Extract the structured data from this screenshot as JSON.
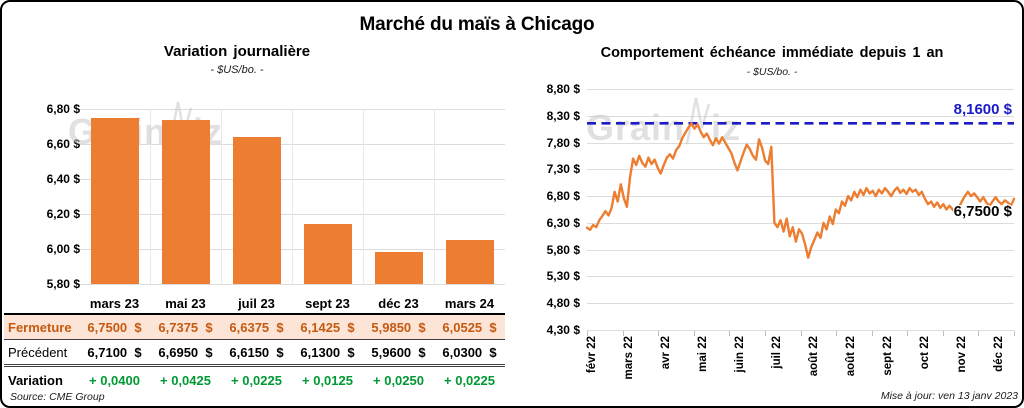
{
  "page": {
    "title": "Marché du maïs à Chicago",
    "watermark_prefix": "Grain",
    "watermark_suffix": "iz",
    "source": "Source: CME Group",
    "updated": "Mise à jour: ven 13 janv 2023"
  },
  "colors": {
    "series_orange": "#ED7D31",
    "close_text": "#C55A11",
    "close_row_bg": "#FCE4D6",
    "variation_green": "#009933",
    "reference_blue": "#1B1BC8",
    "gridline": "#DCDCDC"
  },
  "chart_data": [
    {
      "type": "bar",
      "title": "Variation journalière",
      "subtitle": "- $US/bo. -",
      "categories": [
        "mars 23",
        "mai 23",
        "juil 23",
        "sept 23",
        "déc 23",
        "mars 24"
      ],
      "values": [
        6.75,
        6.7375,
        6.6375,
        6.1425,
        5.985,
        6.0525
      ],
      "ylim": [
        5.8,
        6.8
      ],
      "ytick_step": 0.2,
      "yticks": [
        "6,80 $",
        "6,60 $",
        "6,40 $",
        "6,20 $",
        "6,00 $",
        "5,80 $"
      ],
      "bar_color": "#ED7D31",
      "grid": true,
      "legend": "none"
    },
    {
      "type": "line",
      "title": "Comportement échéance immédiate depuis 1 an",
      "subtitle": "- $US/bo. -",
      "x_labels": [
        "févr 22",
        "mars 22",
        "avr 22",
        "mai 22",
        "juin 22",
        "juil 22",
        "août 22",
        "août 22",
        "sept 22",
        "oct 22",
        "nov 22",
        "déc 22"
      ],
      "ylim": [
        4.3,
        8.8
      ],
      "ytick_step": 0.5,
      "yticks": [
        "8,80 $",
        "8,30 $",
        "7,80 $",
        "7,30 $",
        "6,80 $",
        "6,30 $",
        "5,80 $",
        "5,30 $",
        "4,80 $",
        "4,30 $"
      ],
      "reference_line": {
        "value": 8.16,
        "label": "8,1600 $"
      },
      "last_point": {
        "value": 6.75,
        "label": "6,7500 $"
      },
      "grid": true,
      "legend": "none",
      "series": [
        {
          "color": "#ED7D31",
          "values": [
            6.21,
            6.17,
            6.26,
            6.22,
            6.35,
            6.43,
            6.52,
            6.44,
            6.58,
            6.88,
            6.7,
            7.02,
            6.76,
            6.6,
            7.15,
            7.5,
            7.38,
            7.55,
            7.42,
            7.35,
            7.52,
            7.4,
            7.48,
            7.33,
            7.22,
            7.38,
            7.52,
            7.58,
            7.5,
            7.66,
            7.73,
            7.88,
            7.98,
            8.08,
            8.16,
            8.06,
            8.14,
            8.0,
            7.9,
            7.97,
            7.85,
            7.75,
            7.88,
            7.78,
            7.9,
            7.8,
            7.7,
            7.6,
            7.42,
            7.28,
            7.45,
            7.62,
            7.76,
            7.68,
            7.55,
            7.48,
            7.86,
            7.7,
            7.46,
            7.4,
            7.72,
            6.3,
            6.22,
            6.35,
            6.14,
            6.38,
            6.05,
            6.22,
            5.95,
            6.18,
            6.1,
            5.9,
            5.65,
            5.85,
            5.98,
            6.12,
            6.02,
            6.3,
            6.18,
            6.42,
            6.28,
            6.55,
            6.48,
            6.7,
            6.62,
            6.8,
            6.72,
            6.88,
            6.78,
            6.92,
            6.82,
            6.95,
            6.85,
            6.9,
            6.8,
            6.92,
            6.85,
            6.95,
            6.88,
            6.8,
            6.9,
            6.96,
            6.86,
            6.92,
            6.84,
            6.95,
            6.88,
            6.92,
            6.82,
            6.88,
            6.75,
            6.65,
            6.7,
            6.6,
            6.68,
            6.58,
            6.65,
            6.55,
            6.62,
            6.55,
            6.48,
            6.58,
            6.7,
            6.8,
            6.88,
            6.8,
            6.85,
            6.78,
            6.7,
            6.78,
            6.68,
            6.62,
            6.7,
            6.78,
            6.7,
            6.65,
            6.72,
            6.68,
            6.62,
            6.75
          ]
        }
      ]
    }
  ],
  "table": {
    "months": [
      "mars 23",
      "mai 23",
      "juil 23",
      "sept 23",
      "déc 23",
      "mars 24"
    ],
    "rows": [
      {
        "id": "fermeture",
        "label": "Fermeture",
        "values": [
          "6,7500  $",
          "6,7375  $",
          "6,6375  $",
          "6,1425  $",
          "5,9850  $",
          "6,0525  $"
        ]
      },
      {
        "id": "precedent",
        "label": "Précédent",
        "values": [
          "6,7100  $",
          "6,6950  $",
          "6,6150  $",
          "6,1300  $",
          "5,9600  $",
          "6,0300  $"
        ]
      },
      {
        "id": "variation",
        "label": "Variation",
        "values": [
          "+ 0,0400",
          "+ 0,0425",
          "+ 0,0225",
          "+ 0,0125",
          "+ 0,0250",
          "+ 0,0225"
        ]
      }
    ]
  }
}
